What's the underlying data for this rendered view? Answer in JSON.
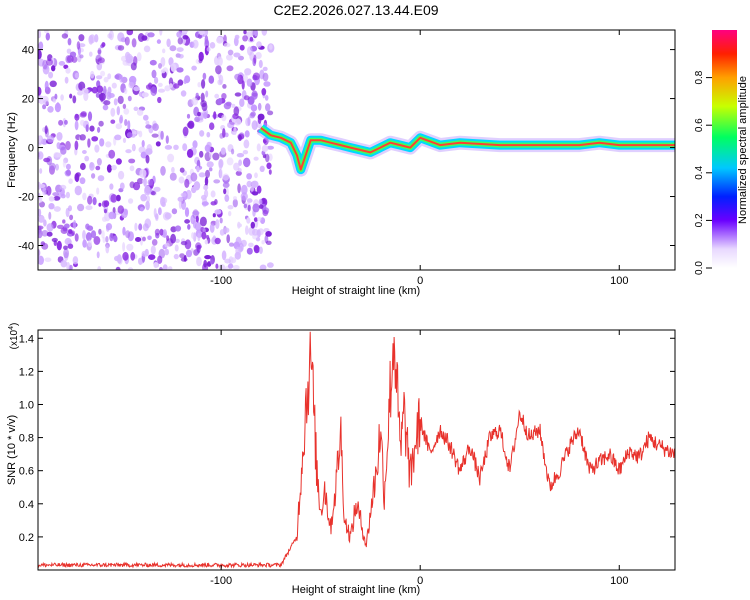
{
  "figure_title": "C2E2.2026.027.13.44.E09",
  "colors": {
    "background_scatter": "#8a2be2",
    "snr_line": "#e8322c",
    "axis": "#000000"
  },
  "colorbar": {
    "label": "Normalized spectral amplitude",
    "ticks": [
      "0.0",
      "0.2",
      "0.4",
      "0.6",
      "0.8"
    ],
    "range": [
      0,
      1
    ]
  },
  "chart_data": [
    {
      "type": "heatmap",
      "title": "C2E2.2026.027.13.44.E09",
      "xlabel": "Height of straight line (km)",
      "ylabel": "Frequency (Hz)",
      "xlim": [
        -192,
        128
      ],
      "ylim": [
        -50,
        48
      ],
      "x_ticks": [
        -100,
        0,
        100
      ],
      "y_ticks": [
        -40,
        -20,
        0,
        20,
        40
      ],
      "noise_region_x": [
        -192,
        -75
      ],
      "signal_track": {
        "x": [
          -80,
          -75,
          -70,
          -65,
          -62,
          -60,
          -55,
          -50,
          -45,
          -40,
          -35,
          -30,
          -25,
          -20,
          -15,
          -10,
          -5,
          0,
          10,
          20,
          40,
          60,
          80,
          90,
          100,
          110,
          128
        ],
        "y": [
          8,
          5,
          4,
          2,
          -3,
          -9,
          3,
          3,
          2,
          1,
          0,
          -1,
          -2,
          0,
          2,
          1,
          0,
          4,
          1,
          2,
          1,
          1,
          1,
          2,
          1,
          1,
          1
        ]
      }
    },
    {
      "type": "line",
      "xlabel": "Height of straight line (km)",
      "ylabel": "SNR (10 * v/v)",
      "y_multiplier": "(x10",
      "y_multiplier_exp": "4",
      "y_multiplier_close": ")",
      "xlim": [
        -192,
        128
      ],
      "ylim": [
        0,
        1.45
      ],
      "x_ticks": [
        -100,
        0,
        100
      ],
      "y_ticks": [
        0.2,
        0.4,
        0.6,
        0.8,
        1.0,
        1.2,
        1.4
      ],
      "x": [
        -192,
        -70,
        -62,
        -58,
        -55,
        -52,
        -50,
        -48,
        -45,
        -42,
        -40,
        -38,
        -35,
        -32,
        -30,
        -27,
        -25,
        -22,
        -20,
        -18,
        -15,
        -13,
        -10,
        -8,
        -5,
        -2,
        0,
        5,
        10,
        15,
        20,
        25,
        30,
        35,
        40,
        45,
        50,
        55,
        60,
        65,
        70,
        75,
        80,
        85,
        90,
        95,
        100,
        105,
        110,
        115,
        120,
        128
      ],
      "y": [
        0.03,
        0.03,
        0.2,
        0.9,
        1.34,
        0.6,
        0.35,
        0.5,
        0.25,
        0.55,
        0.85,
        0.3,
        0.2,
        0.4,
        0.3,
        0.15,
        0.35,
        0.6,
        0.85,
        0.45,
        1.1,
        1.43,
        0.7,
        0.95,
        0.55,
        0.8,
        0.9,
        0.7,
        0.85,
        0.75,
        0.6,
        0.75,
        0.55,
        0.8,
        0.85,
        0.6,
        0.95,
        0.8,
        0.85,
        0.5,
        0.6,
        0.75,
        0.85,
        0.6,
        0.65,
        0.7,
        0.6,
        0.72,
        0.68,
        0.8,
        0.75,
        0.7
      ]
    }
  ]
}
